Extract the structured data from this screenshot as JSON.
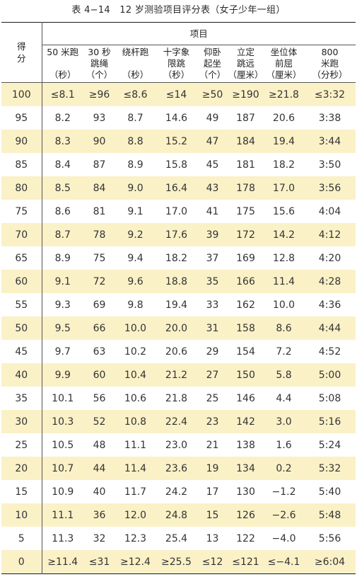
{
  "title": "表 4−14　12 岁测验项目评分表（女子少年一组）",
  "header": {
    "score_label": "得\n分",
    "group_label": "项目",
    "columns": [
      {
        "lines": [
          "50 米跑",
          "",
          "（秒）"
        ]
      },
      {
        "lines": [
          "30 秒",
          "跳绳",
          "（个）"
        ]
      },
      {
        "lines": [
          "绕杆跑",
          "",
          "（秒）"
        ]
      },
      {
        "lines": [
          "十字象",
          "限跳",
          "（秒）"
        ]
      },
      {
        "lines": [
          "仰卧",
          "起坐",
          "（个）"
        ]
      },
      {
        "lines": [
          "立定",
          "跳远",
          "（厘米）"
        ]
      },
      {
        "lines": [
          "坐位体",
          "前屈",
          "（厘米）"
        ]
      },
      {
        "lines": [
          "800",
          "米跑",
          "（分秒）"
        ]
      }
    ]
  },
  "rows": [
    [
      "100",
      "≤8.1",
      "≥96",
      "≤8.6",
      "≤14",
      "≥50",
      "≥190",
      "≥21.8",
      "≤3:32"
    ],
    [
      "95",
      "8.2",
      "93",
      "8.7",
      "14.6",
      "49",
      "187",
      "20.6",
      "3:38"
    ],
    [
      "90",
      "8.3",
      "90",
      "8.8",
      "15.2",
      "47",
      "184",
      "19.4",
      "3:44"
    ],
    [
      "85",
      "8.4",
      "87",
      "8.9",
      "15.8",
      "45",
      "181",
      "18.2",
      "3:50"
    ],
    [
      "80",
      "8.5",
      "84",
      "9.0",
      "16.4",
      "43",
      "178",
      "17.0",
      "3:56"
    ],
    [
      "75",
      "8.6",
      "81",
      "9.1",
      "17.0",
      "41",
      "175",
      "15.6",
      "4:04"
    ],
    [
      "70",
      "8.7",
      "78",
      "9.2",
      "17.6",
      "39",
      "172",
      "14.2",
      "4:12"
    ],
    [
      "65",
      "8.9",
      "75",
      "9.4",
      "18.2",
      "37",
      "169",
      "12.8",
      "4:20"
    ],
    [
      "60",
      "9.1",
      "72",
      "9.6",
      "18.8",
      "35",
      "166",
      "11.4",
      "4:28"
    ],
    [
      "55",
      "9.3",
      "69",
      "9.8",
      "19.4",
      "33",
      "162",
      "10.0",
      "4:36"
    ],
    [
      "50",
      "9.5",
      "66",
      "10.0",
      "20.0",
      "31",
      "158",
      "8.6",
      "4:44"
    ],
    [
      "45",
      "9.7",
      "63",
      "10.2",
      "20.6",
      "29",
      "154",
      "7.2",
      "4:52"
    ],
    [
      "40",
      "9.9",
      "60",
      "10.4",
      "21.2",
      "27",
      "150",
      "5.8",
      "5:00"
    ],
    [
      "35",
      "10.1",
      "56",
      "10.6",
      "21.8",
      "25",
      "146",
      "4.4",
      "5:08"
    ],
    [
      "30",
      "10.3",
      "52",
      "10.8",
      "22.4",
      "23",
      "142",
      "3.0",
      "5:16"
    ],
    [
      "25",
      "10.5",
      "48",
      "11.1",
      "23.0",
      "21",
      "138",
      "1.6",
      "5:24"
    ],
    [
      "20",
      "10.7",
      "44",
      "11.4",
      "23.6",
      "19",
      "134",
      "0.2",
      "5:32"
    ],
    [
      "15",
      "10.9",
      "40",
      "11.7",
      "24.2",
      "17",
      "130",
      "−1.2",
      "5:40"
    ],
    [
      "10",
      "11.1",
      "36",
      "12.0",
      "24.8",
      "15",
      "126",
      "−2.6",
      "5:48"
    ],
    [
      "5",
      "11.3",
      "32",
      "12.3",
      "25.4",
      "13",
      "122",
      "−4.0",
      "5:56"
    ],
    [
      "0",
      "≥11.4",
      "≤31",
      "≥12.4",
      "≥25.5",
      "≤12",
      "≤121",
      "≤−4.1",
      "≥6:04"
    ]
  ],
  "colors": {
    "highlight_row": "#fbf1c7",
    "plain_row": "#ffffff",
    "rule": "#1a1a1a"
  }
}
